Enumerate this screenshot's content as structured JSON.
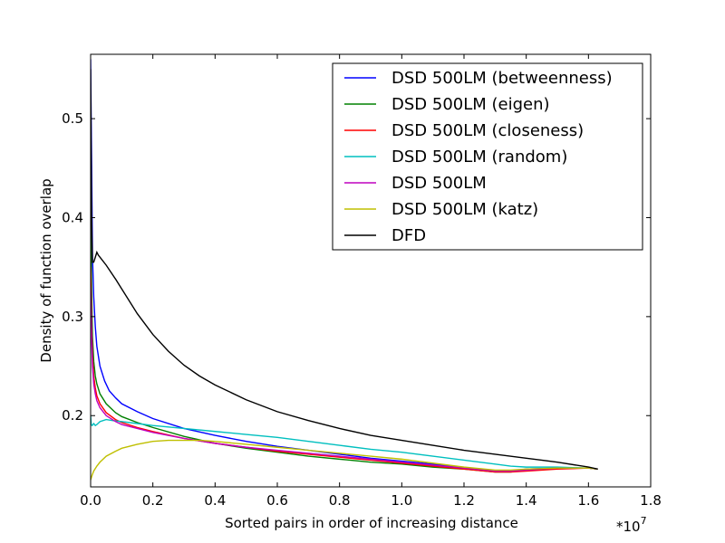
{
  "chart_data": {
    "type": "line",
    "xlabel": "Sorted pairs in order of increasing distance",
    "ylabel": "Density of function overlap",
    "x_multiplier_base": "*10",
    "x_multiplier_exp": "7",
    "xlim": [
      0,
      1.8
    ],
    "ylim": [
      0.128,
      0.565
    ],
    "x_ticks": [
      0.0,
      0.2,
      0.4,
      0.6,
      0.8,
      1.0,
      1.2,
      1.4,
      1.6,
      1.8
    ],
    "x_tick_labels": [
      "0.0",
      "0.2",
      "0.4",
      "0.6",
      "0.8",
      "1.0",
      "1.2",
      "1.4",
      "1.6",
      "1.8"
    ],
    "y_ticks": [
      0.2,
      0.3,
      0.4,
      0.5
    ],
    "y_tick_labels": [
      "0.2",
      "0.3",
      "0.4",
      "0.5"
    ],
    "grid": false,
    "legend_position": "top-right",
    "series": [
      {
        "name": "DSD 500LM (betweenness)",
        "color": "#0000ff",
        "points": [
          [
            0.0,
            0.56
          ],
          [
            0.003,
            0.46
          ],
          [
            0.006,
            0.36
          ],
          [
            0.01,
            0.32
          ],
          [
            0.015,
            0.29
          ],
          [
            0.02,
            0.27
          ],
          [
            0.03,
            0.25
          ],
          [
            0.045,
            0.235
          ],
          [
            0.06,
            0.225
          ],
          [
            0.08,
            0.218
          ],
          [
            0.1,
            0.212
          ],
          [
            0.15,
            0.204
          ],
          [
            0.2,
            0.197
          ],
          [
            0.3,
            0.187
          ],
          [
            0.4,
            0.18
          ],
          [
            0.5,
            0.174
          ],
          [
            0.6,
            0.169
          ],
          [
            0.7,
            0.165
          ],
          [
            0.8,
            0.161
          ],
          [
            0.9,
            0.157
          ],
          [
            1.0,
            0.154
          ],
          [
            1.1,
            0.151
          ],
          [
            1.2,
            0.147
          ],
          [
            1.3,
            0.144
          ],
          [
            1.35,
            0.144
          ],
          [
            1.4,
            0.146
          ],
          [
            1.5,
            0.147
          ],
          [
            1.6,
            0.147
          ],
          [
            1.63,
            0.146
          ]
        ]
      },
      {
        "name": "DSD 500LM (eigen)",
        "color": "#008000",
        "points": [
          [
            0.0,
            0.4
          ],
          [
            0.003,
            0.33
          ],
          [
            0.006,
            0.28
          ],
          [
            0.01,
            0.255
          ],
          [
            0.015,
            0.24
          ],
          [
            0.02,
            0.232
          ],
          [
            0.03,
            0.222
          ],
          [
            0.05,
            0.212
          ],
          [
            0.08,
            0.203
          ],
          [
            0.1,
            0.199
          ],
          [
            0.15,
            0.193
          ],
          [
            0.2,
            0.188
          ],
          [
            0.3,
            0.179
          ],
          [
            0.4,
            0.172
          ],
          [
            0.5,
            0.167
          ],
          [
            0.6,
            0.163
          ],
          [
            0.7,
            0.159
          ],
          [
            0.8,
            0.156
          ],
          [
            0.9,
            0.153
          ],
          [
            1.0,
            0.151
          ],
          [
            1.1,
            0.148
          ],
          [
            1.2,
            0.146
          ],
          [
            1.3,
            0.143
          ],
          [
            1.35,
            0.143
          ],
          [
            1.4,
            0.145
          ],
          [
            1.5,
            0.147
          ],
          [
            1.6,
            0.147
          ],
          [
            1.63,
            0.146
          ]
        ]
      },
      {
        "name": "DSD 500LM (closeness)",
        "color": "#ff0000",
        "points": [
          [
            0.0,
            0.35
          ],
          [
            0.003,
            0.29
          ],
          [
            0.006,
            0.26
          ],
          [
            0.01,
            0.24
          ],
          [
            0.015,
            0.228
          ],
          [
            0.02,
            0.22
          ],
          [
            0.03,
            0.212
          ],
          [
            0.05,
            0.203
          ],
          [
            0.08,
            0.196
          ],
          [
            0.1,
            0.193
          ],
          [
            0.15,
            0.188
          ],
          [
            0.2,
            0.184
          ],
          [
            0.3,
            0.177
          ],
          [
            0.4,
            0.172
          ],
          [
            0.5,
            0.168
          ],
          [
            0.6,
            0.164
          ],
          [
            0.7,
            0.161
          ],
          [
            0.8,
            0.158
          ],
          [
            0.9,
            0.155
          ],
          [
            1.0,
            0.152
          ],
          [
            1.1,
            0.149
          ],
          [
            1.2,
            0.146
          ],
          [
            1.3,
            0.143
          ],
          [
            1.35,
            0.143
          ],
          [
            1.4,
            0.144
          ],
          [
            1.5,
            0.146
          ],
          [
            1.6,
            0.147
          ],
          [
            1.63,
            0.146
          ]
        ]
      },
      {
        "name": "DSD 500LM (random)",
        "color": "#00bfbf",
        "points": [
          [
            0.0,
            0.2
          ],
          [
            0.002,
            0.191
          ],
          [
            0.005,
            0.19
          ],
          [
            0.01,
            0.192
          ],
          [
            0.015,
            0.19
          ],
          [
            0.02,
            0.191
          ],
          [
            0.03,
            0.194
          ],
          [
            0.05,
            0.196
          ],
          [
            0.07,
            0.195
          ],
          [
            0.1,
            0.194
          ],
          [
            0.15,
            0.192
          ],
          [
            0.2,
            0.19
          ],
          [
            0.3,
            0.187
          ],
          [
            0.4,
            0.184
          ],
          [
            0.5,
            0.181
          ],
          [
            0.6,
            0.178
          ],
          [
            0.7,
            0.174
          ],
          [
            0.8,
            0.17
          ],
          [
            0.9,
            0.166
          ],
          [
            1.0,
            0.163
          ],
          [
            1.1,
            0.159
          ],
          [
            1.2,
            0.155
          ],
          [
            1.3,
            0.151
          ],
          [
            1.35,
            0.149
          ],
          [
            1.4,
            0.148
          ],
          [
            1.5,
            0.148
          ],
          [
            1.6,
            0.147
          ],
          [
            1.63,
            0.146
          ]
        ]
      },
      {
        "name": "DSD 500LM",
        "color": "#bf00bf",
        "points": [
          [
            0.0,
            0.33
          ],
          [
            0.003,
            0.28
          ],
          [
            0.006,
            0.25
          ],
          [
            0.01,
            0.232
          ],
          [
            0.015,
            0.222
          ],
          [
            0.02,
            0.215
          ],
          [
            0.03,
            0.208
          ],
          [
            0.05,
            0.2
          ],
          [
            0.08,
            0.194
          ],
          [
            0.1,
            0.191
          ],
          [
            0.15,
            0.187
          ],
          [
            0.2,
            0.183
          ],
          [
            0.3,
            0.177
          ],
          [
            0.4,
            0.172
          ],
          [
            0.5,
            0.168
          ],
          [
            0.6,
            0.165
          ],
          [
            0.7,
            0.162
          ],
          [
            0.8,
            0.159
          ],
          [
            0.9,
            0.156
          ],
          [
            1.0,
            0.153
          ],
          [
            1.1,
            0.15
          ],
          [
            1.2,
            0.147
          ],
          [
            1.3,
            0.144
          ],
          [
            1.35,
            0.144
          ],
          [
            1.4,
            0.145
          ],
          [
            1.5,
            0.147
          ],
          [
            1.6,
            0.147
          ],
          [
            1.63,
            0.146
          ]
        ]
      },
      {
        "name": "DSD 500LM (katz)",
        "color": "#bfbf00",
        "points": [
          [
            0.0,
            0.135
          ],
          [
            0.005,
            0.14
          ],
          [
            0.01,
            0.144
          ],
          [
            0.02,
            0.149
          ],
          [
            0.03,
            0.153
          ],
          [
            0.05,
            0.159
          ],
          [
            0.08,
            0.164
          ],
          [
            0.1,
            0.167
          ],
          [
            0.15,
            0.171
          ],
          [
            0.2,
            0.174
          ],
          [
            0.25,
            0.175
          ],
          [
            0.3,
            0.175
          ],
          [
            0.35,
            0.175
          ],
          [
            0.4,
            0.174
          ],
          [
            0.5,
            0.171
          ],
          [
            0.6,
            0.168
          ],
          [
            0.7,
            0.165
          ],
          [
            0.8,
            0.162
          ],
          [
            0.9,
            0.159
          ],
          [
            1.0,
            0.156
          ],
          [
            1.1,
            0.152
          ],
          [
            1.2,
            0.148
          ],
          [
            1.3,
            0.145
          ],
          [
            1.35,
            0.145
          ],
          [
            1.4,
            0.146
          ],
          [
            1.5,
            0.147
          ],
          [
            1.6,
            0.147
          ],
          [
            1.63,
            0.146
          ]
        ]
      },
      {
        "name": "DFD",
        "color": "#000000",
        "points": [
          [
            0.0,
            0.55
          ],
          [
            0.003,
            0.4
          ],
          [
            0.006,
            0.355
          ],
          [
            0.01,
            0.355
          ],
          [
            0.015,
            0.36
          ],
          [
            0.02,
            0.365
          ],
          [
            0.025,
            0.362
          ],
          [
            0.03,
            0.36
          ],
          [
            0.05,
            0.352
          ],
          [
            0.08,
            0.338
          ],
          [
            0.1,
            0.328
          ],
          [
            0.15,
            0.303
          ],
          [
            0.2,
            0.282
          ],
          [
            0.25,
            0.265
          ],
          [
            0.3,
            0.251
          ],
          [
            0.35,
            0.24
          ],
          [
            0.4,
            0.231
          ],
          [
            0.5,
            0.216
          ],
          [
            0.6,
            0.204
          ],
          [
            0.7,
            0.195
          ],
          [
            0.8,
            0.187
          ],
          [
            0.9,
            0.18
          ],
          [
            1.0,
            0.175
          ],
          [
            1.1,
            0.17
          ],
          [
            1.2,
            0.165
          ],
          [
            1.3,
            0.161
          ],
          [
            1.4,
            0.157
          ],
          [
            1.5,
            0.153
          ],
          [
            1.6,
            0.148
          ],
          [
            1.63,
            0.146
          ]
        ]
      }
    ]
  }
}
